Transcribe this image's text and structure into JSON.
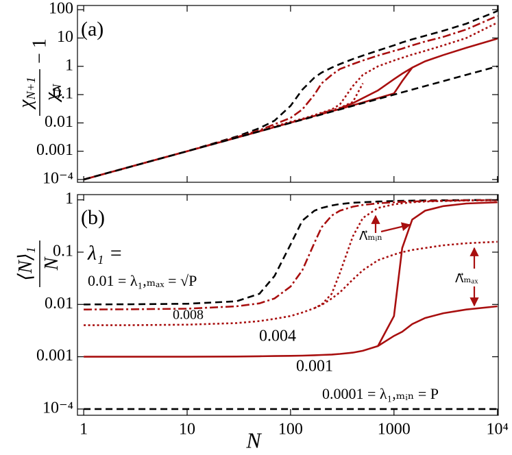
{
  "chart_data": [
    {
      "type": "line",
      "panel_label": "(a)",
      "ylabel": {
        "num": "χ",
        "num_sub": "N+1",
        "den": "χ",
        "den_sub": "N",
        "rest": "− 1"
      },
      "log_x": true,
      "log_y": true,
      "show_xtick_labels": false,
      "xlim": [
        0.87,
        10200
      ],
      "ylim": [
        8e-05,
        141
      ],
      "xticks": [
        1,
        10,
        100,
        1000,
        {
          "value": 10000,
          "label": "10⁴"
        }
      ],
      "yticks": [
        {
          "value": 0.0001,
          "label": "10⁻⁴"
        },
        0.001,
        0.01,
        0.1,
        1,
        10,
        100
      ],
      "x": [
        1,
        3,
        10,
        30,
        50,
        70,
        100,
        130,
        170,
        200,
        250,
        300,
        400,
        500,
        700,
        1000,
        1200,
        1500,
        2000,
        3000,
        5000,
        10000
      ],
      "series": [
        {
          "color": "#000000",
          "dash": "dashed",
          "values": [
            0.0001,
            0.0003,
            0.001,
            0.0033,
            0.0065,
            0.012,
            0.04,
            0.15,
            0.4,
            0.6,
            0.9,
            1.2,
            1.8,
            2.4,
            3.6,
            5.5,
            7,
            9,
            12,
            18,
            32,
            90
          ]
        },
        {
          "color": "#a80f0f",
          "dash": "dashdot",
          "values": [
            0.0001,
            0.0003,
            0.001,
            0.0031,
            0.0055,
            0.009,
            0.015,
            0.03,
            0.1,
            0.25,
            0.5,
            0.8,
            1.2,
            1.6,
            2.4,
            3.5,
            4.2,
            5.5,
            7.5,
            11,
            20,
            60
          ]
        },
        {
          "color": "#a80f0f",
          "dash": "dotted",
          "values": [
            0.0001,
            0.0003,
            0.001,
            0.0031,
            0.0052,
            0.0075,
            0.011,
            0.014,
            0.019,
            0.023,
            0.03,
            0.045,
            0.2,
            0.5,
            1,
            1.6,
            2,
            2.6,
            3.5,
            5.5,
            10,
            35
          ]
        },
        {
          "color": "#a80f0f",
          "dash": "dotted",
          "values": [
            null,
            null,
            null,
            null,
            null,
            null,
            null,
            null,
            null,
            0.022,
            0.028,
            0.034,
            0.055,
            0.25,
            null,
            null,
            null,
            null,
            null,
            null,
            null,
            null
          ]
        },
        {
          "color": "#a80f0f",
          "dash": "solid",
          "values": [
            0.0001,
            0.0003,
            0.001,
            0.003,
            0.005,
            0.0071,
            0.0102,
            0.0133,
            0.0175,
            0.0206,
            0.026,
            0.031,
            0.042,
            0.053,
            0.075,
            0.11,
            0.3,
            0.9,
            1.5,
            2.5,
            4.5,
            9.5
          ]
        },
        {
          "color": "#a80f0f",
          "dash": "solid",
          "values": [
            null,
            null,
            null,
            null,
            null,
            null,
            null,
            null,
            null,
            null,
            null,
            0.033,
            0.05,
            0.075,
            0.14,
            0.35,
            0.55,
            0.9,
            null,
            null,
            null,
            null
          ]
        },
        {
          "color": "#000000",
          "dash": "dashed",
          "values": [
            0.0001,
            0.0003,
            0.001,
            0.003,
            0.005,
            0.007,
            0.01,
            0.013,
            0.017,
            0.02,
            0.025,
            0.03,
            0.04,
            0.05,
            0.07,
            0.1,
            0.12,
            0.15,
            0.2,
            0.3,
            0.5,
            1
          ]
        }
      ]
    },
    {
      "type": "line",
      "panel_label": "(b)",
      "ylabel": {
        "num": "⟨N⟩",
        "num_sub": "1",
        "den": "N"
      },
      "xlabel": "N",
      "log_x": true,
      "log_y": true,
      "show_xtick_labels": true,
      "xlim": [
        0.87,
        10200
      ],
      "ylim": [
        7.6e-05,
        1.26
      ],
      "xticks": [
        1,
        10,
        100,
        1000,
        {
          "value": 10000,
          "label": "10⁴"
        }
      ],
      "yticks": [
        {
          "value": 0.0001,
          "label": "10⁻⁴"
        },
        0.001,
        0.01,
        0.1,
        1
      ],
      "x": [
        1,
        3,
        10,
        30,
        50,
        70,
        100,
        130,
        170,
        200,
        250,
        300,
        400,
        500,
        700,
        1000,
        1200,
        1500,
        2000,
        3000,
        5000,
        10000
      ],
      "series": [
        {
          "color": "#000000",
          "dash": "dashed",
          "values": [
            0.01,
            0.0101,
            0.0103,
            0.0115,
            0.016,
            0.035,
            0.14,
            0.4,
            0.62,
            0.7,
            0.78,
            0.83,
            0.88,
            0.9,
            0.93,
            0.95,
            0.96,
            0.965,
            0.975,
            0.98,
            0.99,
            0.995
          ]
        },
        {
          "color": "#a80f0f",
          "dash": "dashdot",
          "values": [
            0.008,
            0.0081,
            0.0083,
            0.0092,
            0.0105,
            0.013,
            0.022,
            0.045,
            0.15,
            0.3,
            0.5,
            0.62,
            0.74,
            0.8,
            0.86,
            0.9,
            0.92,
            0.93,
            0.95,
            0.96,
            0.98,
            0.99
          ]
        },
        {
          "color": "#a80f0f",
          "dash": "dotted",
          "values": [
            0.004,
            0.00402,
            0.0041,
            0.0044,
            0.0048,
            0.0053,
            0.006,
            0.007,
            0.0085,
            0.01,
            0.016,
            0.04,
            0.2,
            0.45,
            0.7,
            0.82,
            0.86,
            0.9,
            0.93,
            0.95,
            0.97,
            0.98
          ]
        },
        {
          "color": "#a80f0f",
          "dash": "dotted",
          "values": [
            null,
            null,
            null,
            null,
            null,
            null,
            null,
            null,
            0.0085,
            0.0098,
            0.013,
            0.017,
            0.03,
            0.045,
            0.07,
            0.09,
            0.1,
            0.11,
            0.12,
            0.135,
            0.148,
            0.158
          ]
        },
        {
          "color": "#a80f0f",
          "dash": "solid",
          "values": [
            0.001,
            0.001,
            0.001,
            0.00101,
            0.00102,
            0.00103,
            0.00104,
            0.00105,
            0.00107,
            0.00108,
            0.0011,
            0.00113,
            0.0012,
            0.0013,
            0.0016,
            0.006,
            0.12,
            0.42,
            0.62,
            0.76,
            0.85,
            0.9
          ]
        },
        {
          "color": "#a80f0f",
          "dash": "solid",
          "values": [
            null,
            null,
            null,
            null,
            null,
            null,
            null,
            null,
            null,
            null,
            null,
            null,
            null,
            null,
            0.0016,
            0.0025,
            0.003,
            0.0042,
            0.0055,
            0.0068,
            0.008,
            0.0092
          ]
        },
        {
          "color": "#000000",
          "dash": "dashed",
          "values": [
            0.0001,
            0.0001,
            0.0001,
            0.0001,
            0.0001,
            0.0001,
            0.0001,
            0.0001,
            0.0001,
            0.0001,
            0.0001,
            0.0001,
            0.0001,
            0.0001,
            0.0001,
            0.0001,
            0.0001,
            0.0001,
            0.0001,
            0.0001,
            0.0001,
            0.0001
          ]
        }
      ],
      "annotations": [
        {
          "text": "λ₁ =",
          "color": "#000000"
        },
        {
          "text": "0.01 = λ₁,ₘₐₓ = √P",
          "color": "#000000"
        },
        {
          "text": "0.008",
          "color": "#a80f0f"
        },
        {
          "text": "0.004",
          "color": "#a80f0f"
        },
        {
          "text": "0.001",
          "color": "#a80f0f"
        },
        {
          "text": "0.0001 = λ₁,ₘᵢₙ = P",
          "color": "#000000"
        },
        {
          "text": "Λ⃗ₘᵢₙ",
          "color": "#a80f0f"
        },
        {
          "text": "Λ⃗ₘₐₓ",
          "color": "#a80f0f"
        }
      ]
    }
  ]
}
